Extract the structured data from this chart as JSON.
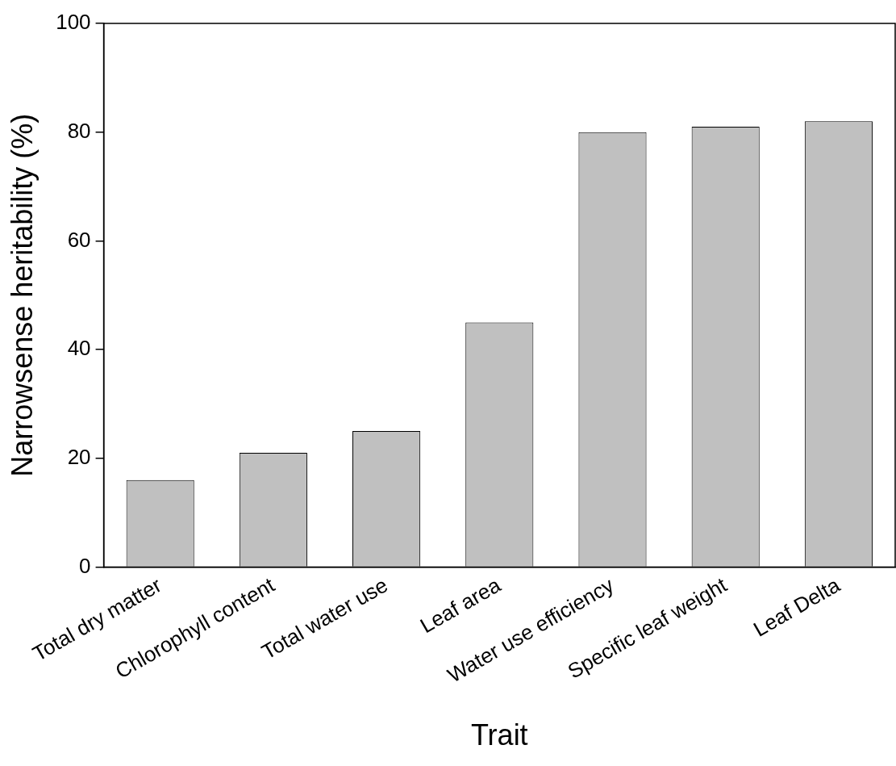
{
  "chart_data": {
    "type": "bar",
    "xlabel": "Trait",
    "ylabel": "Narrowsense heritability (%)",
    "categories": [
      "Total dry matter",
      "Chlorophyll content",
      "Total water use",
      "Leaf area",
      "Water use efficiency",
      "Specific leaf weight",
      "Leaf Delta"
    ],
    "values": [
      16,
      21,
      25,
      45,
      80,
      81,
      82
    ],
    "color": "#c0c0c0",
    "ylim": [
      0,
      100
    ],
    "yticks": [
      0,
      20,
      40,
      60,
      80,
      100
    ],
    "grid": false,
    "legend": false
  }
}
